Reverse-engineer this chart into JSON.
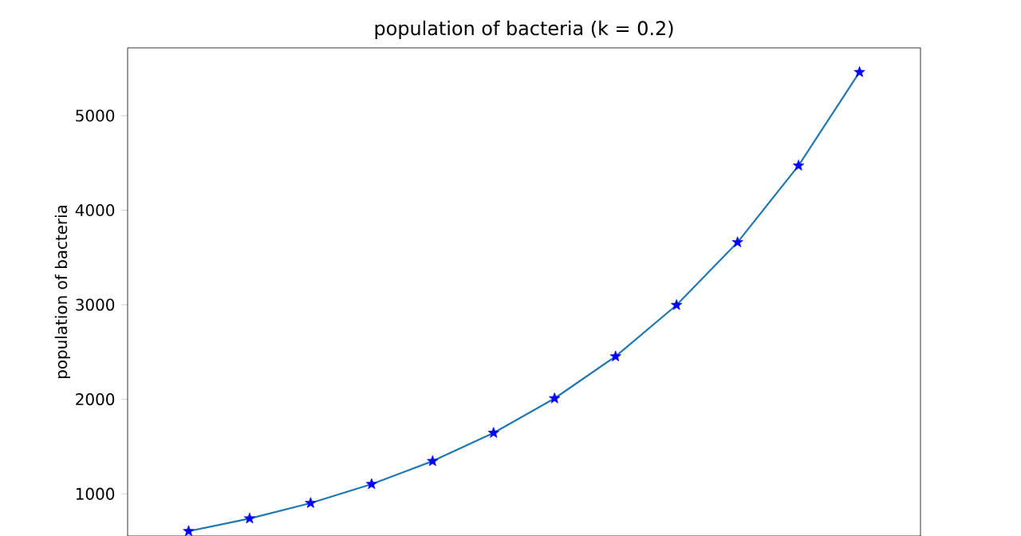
{
  "chart_data": {
    "type": "line",
    "title": "population of bacteria (k = 0.2)",
    "ylabel": "population of bacteria",
    "categories": [
      null,
      null,
      null,
      null,
      null,
      null,
      null,
      null,
      null,
      null,
      null,
      null
    ],
    "series": [
      {
        "color": "#1f77b4",
        "values": [
          605,
          739,
          902,
          1102,
          1346,
          1644,
          2009,
          2453,
          2996,
          3660,
          4471,
          5460
        ],
        "marker": "none"
      },
      {
        "type": "scatter",
        "color": "#0000ff",
        "values": [
          605,
          739,
          902,
          1102,
          1346,
          1644,
          2009,
          2453,
          2996,
          3660,
          4471,
          5460
        ],
        "marker": "star"
      }
    ],
    "line_style": "solid",
    "ylim": [
      554,
      5717
    ],
    "yticks": [
      1000,
      2000,
      3000,
      4000,
      5000
    ],
    "tick_labels": "y",
    "grid": false
  }
}
